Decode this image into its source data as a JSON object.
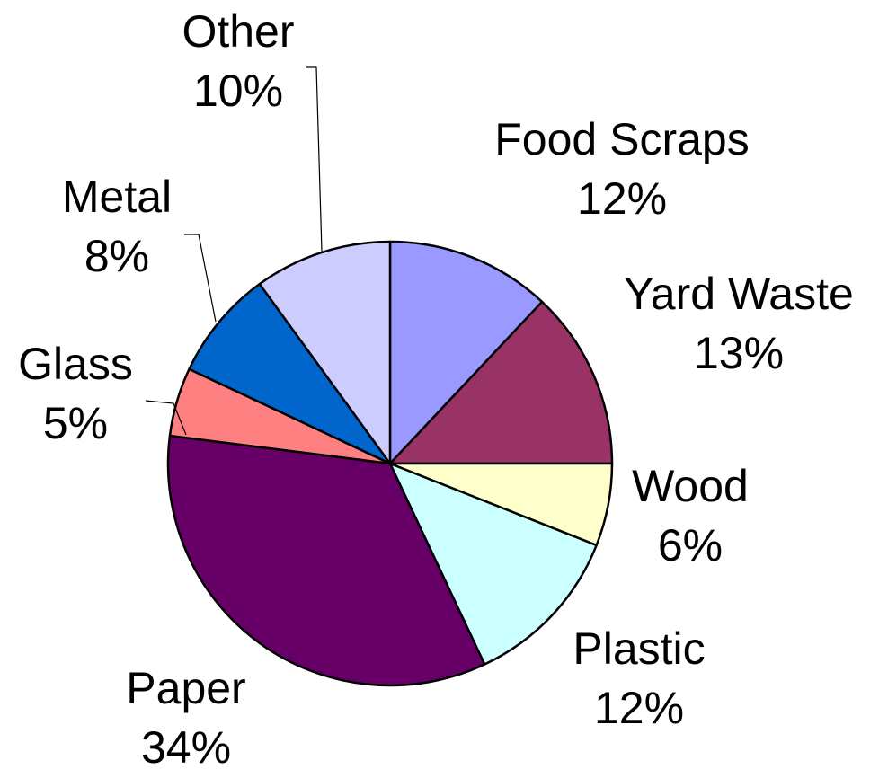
{
  "chart_data": {
    "type": "pie",
    "title": "",
    "start_angle_deg": 0,
    "direction": "clockwise",
    "slices": [
      {
        "label": "Food Scraps",
        "value": 12,
        "pct_label": "12%",
        "color": "#9999FF"
      },
      {
        "label": "Yard Waste",
        "value": 13,
        "pct_label": "13%",
        "color": "#993366"
      },
      {
        "label": "Wood",
        "value": 6,
        "pct_label": "6%",
        "color": "#FFFFCC"
      },
      {
        "label": "Plastic",
        "value": 12,
        "pct_label": "12%",
        "color": "#CCFFFF"
      },
      {
        "label": "Paper",
        "value": 34,
        "pct_label": "34%",
        "color": "#660066"
      },
      {
        "label": "Glass",
        "value": 5,
        "pct_label": "5%",
        "color": "#FF8080"
      },
      {
        "label": "Metal",
        "value": 8,
        "pct_label": "8%",
        "color": "#0066CC"
      },
      {
        "label": "Other",
        "value": 10,
        "pct_label": "10%",
        "color": "#CCCCFF"
      }
    ],
    "legend": "none",
    "data_labels": "category name and percentage"
  }
}
